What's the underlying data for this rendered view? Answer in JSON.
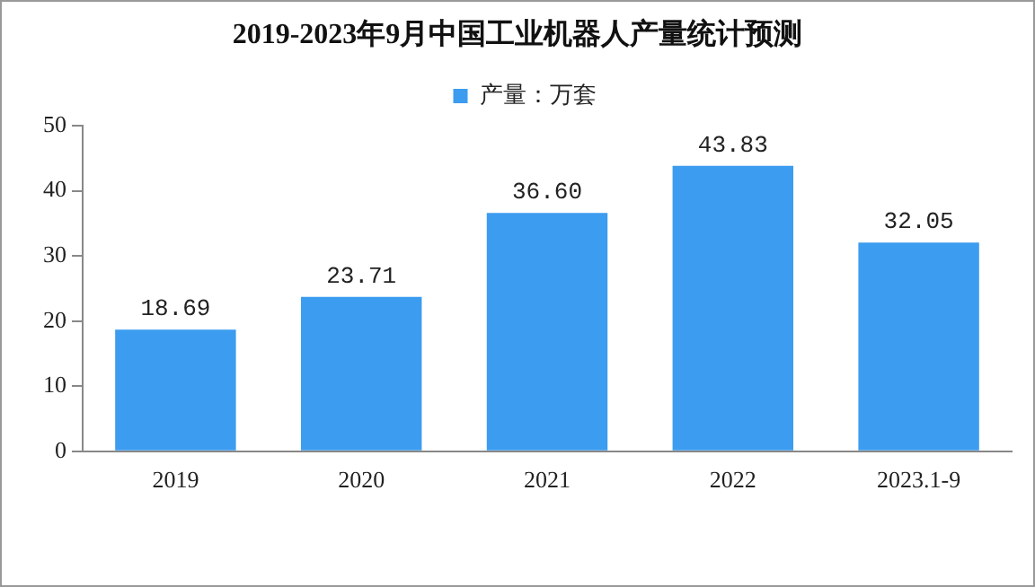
{
  "chart_data": {
    "type": "bar",
    "title": "2019-2023年9月中国工业机器人产量统计预测",
    "categories": [
      "2019",
      "2020",
      "2021",
      "2022",
      "2023.1-9"
    ],
    "series": [
      {
        "name": "产量：万套",
        "color": "#3c9cf0",
        "values": [
          18.69,
          23.71,
          36.6,
          43.83,
          32.05
        ]
      }
    ],
    "value_labels": [
      "18.69",
      "23.71",
      "36.60",
      "43.83",
      "32.05"
    ],
    "ylim": [
      0,
      50
    ],
    "yticks": [
      0,
      10,
      20,
      30,
      40,
      50
    ],
    "grid": false,
    "legend": "top"
  }
}
